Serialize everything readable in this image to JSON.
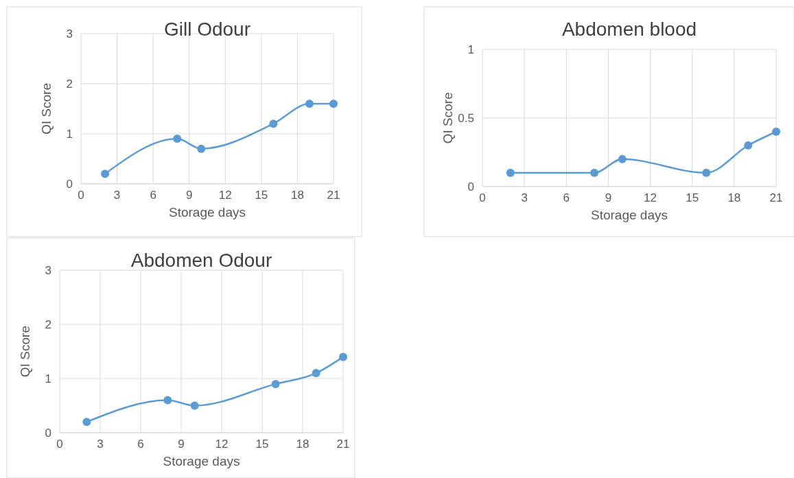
{
  "chart_data": [
    {
      "type": "line",
      "title": "Gill Odour",
      "xlabel": "Storage days",
      "ylabel": "QI Score",
      "x": [
        2,
        8,
        10,
        16,
        19,
        21
      ],
      "series": [
        {
          "color": "#5b9bd5",
          "values": [
            0.2,
            0.9,
            0.7,
            1.2,
            1.6,
            1.6
          ]
        }
      ],
      "xlim": [
        0,
        21
      ],
      "xticks": [
        0,
        3,
        6,
        9,
        12,
        15,
        18,
        21
      ],
      "ylim": [
        0,
        3
      ],
      "yticks": [
        0,
        1,
        2,
        3
      ],
      "grid": true,
      "marker": "circle",
      "line_style": "solid"
    },
    {
      "type": "line",
      "title": "Abdomen blood",
      "xlabel": "Storage days",
      "ylabel": "QI Score",
      "x": [
        2,
        8,
        10,
        16,
        19,
        21
      ],
      "series": [
        {
          "color": "#5b9bd5",
          "values": [
            0.1,
            0.1,
            0.2,
            0.1,
            0.3,
            0.4
          ]
        }
      ],
      "xlim": [
        0,
        21
      ],
      "xticks": [
        0,
        3,
        6,
        9,
        12,
        15,
        18,
        21
      ],
      "ylim": [
        0,
        1
      ],
      "yticks": [
        0,
        0.5,
        1
      ],
      "grid": true,
      "marker": "circle",
      "line_style": "solid"
    },
    {
      "type": "line",
      "title": "Abdomen Odour",
      "xlabel": "Storage days",
      "ylabel": "QI Score",
      "x": [
        2,
        8,
        10,
        16,
        19,
        21
      ],
      "series": [
        {
          "color": "#5b9bd5",
          "values": [
            0.2,
            0.6,
            0.5,
            0.9,
            1.1,
            1.4
          ]
        }
      ],
      "xlim": [
        0,
        21
      ],
      "xticks": [
        0,
        3,
        6,
        9,
        12,
        15,
        18,
        21
      ],
      "ylim": [
        0,
        3
      ],
      "yticks": [
        0,
        1,
        2,
        3
      ],
      "grid": true,
      "marker": "circle",
      "line_style": "solid"
    }
  ]
}
